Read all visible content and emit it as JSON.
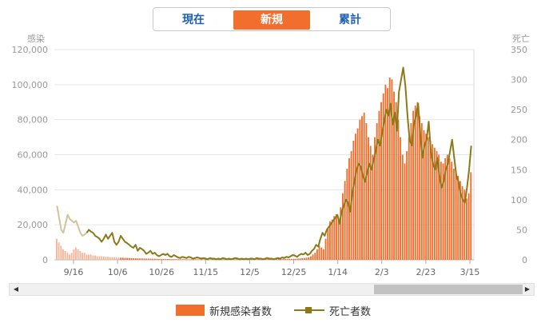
{
  "tabs": [
    {
      "label": "現在",
      "active": false
    },
    {
      "label": "新規",
      "active": true
    },
    {
      "label": "累計",
      "active": false
    }
  ],
  "colors": {
    "cases": "#f26e2c",
    "cases_faded": "#f7b69a",
    "deaths": "#8b7a17",
    "deaths_faded": "#cfc49a",
    "active_tab": "#f26e2c",
    "tab_text": "#1e5fb4"
  },
  "chart_data": {
    "type": "bar",
    "left_axis": {
      "title": "感染",
      "ticks": [
        "0",
        "20,000",
        "40,000",
        "60,000",
        "80,000",
        "100,000",
        "120,000"
      ],
      "ylim": [
        0,
        120000
      ]
    },
    "right_axis": {
      "title": "死亡",
      "ticks": [
        "0",
        "50",
        "100",
        "150",
        "200",
        "250",
        "300",
        "350"
      ],
      "ylim": [
        0,
        350
      ]
    },
    "x_ticks": [
      "9/16",
      "10/6",
      "10/26",
      "11/15",
      "12/5",
      "12/25",
      "1/14",
      "2/3",
      "2/23",
      "3/15"
    ],
    "grid": true,
    "legend_position": "bottom",
    "series": [
      {
        "name": "新規感染者数",
        "type": "bar",
        "axis": "left",
        "values": [
          12000,
          10000,
          8000,
          6000,
          5000,
          4000,
          3000,
          4000,
          6000,
          7000,
          6000,
          5000,
          4000,
          4000,
          3000,
          3000,
          3000,
          2500,
          2500,
          2000,
          2000,
          2000,
          2000,
          1800,
          1800,
          1500,
          1500,
          1500,
          1400,
          1300,
          1200,
          1200,
          1100,
          1100,
          1000,
          1000,
          900,
          900,
          850,
          800,
          800,
          800,
          700,
          700,
          700,
          600,
          600,
          600,
          500,
          500,
          500,
          450,
          450,
          450,
          400,
          400,
          400,
          400,
          350,
          350,
          350,
          300,
          300,
          300,
          300,
          300,
          300,
          250,
          250,
          250,
          250,
          250,
          250,
          250,
          250,
          250,
          250,
          250,
          300,
          300,
          300,
          300,
          300,
          300,
          300,
          300,
          300,
          300,
          350,
          350,
          350,
          350,
          350,
          350,
          400,
          400,
          400,
          400,
          400,
          400,
          450,
          450,
          450,
          450,
          450,
          450,
          500,
          500,
          500,
          500,
          500,
          600,
          600,
          700,
          800,
          900,
          1000,
          1200,
          1500,
          2000,
          3000,
          4000,
          6000,
          8000,
          7000,
          6000,
          12000,
          18000,
          22000,
          23000,
          25000,
          26000,
          24000,
          30000,
          38000,
          45000,
          52000,
          58000,
          62000,
          68000,
          72000,
          75000,
          80000,
          82000,
          84000,
          78000,
          70000,
          65000,
          60000,
          70000,
          78000,
          85000,
          90000,
          95000,
          100000,
          98000,
          104000,
          103000,
          96000,
          90000,
          80000,
          70000,
          60000,
          55000,
          62000,
          70000,
          78000,
          85000,
          88000,
          90000,
          82000,
          78000,
          74000,
          72000,
          70000,
          68000,
          66000,
          64000,
          62000,
          60000,
          56000,
          55000,
          58000,
          60000,
          58000,
          56000,
          52000,
          50000,
          48000,
          45000,
          42000,
          40000,
          35000,
          38000,
          50000
        ]
      },
      {
        "name": "死亡者数",
        "type": "line",
        "axis": "right",
        "values": [
          90,
          70,
          50,
          45,
          60,
          75,
          68,
          65,
          62,
          65,
          55,
          45,
          40,
          42,
          45,
          50,
          47,
          45,
          40,
          38,
          35,
          30,
          35,
          42,
          35,
          40,
          45,
          30,
          25,
          30,
          40,
          35,
          30,
          28,
          25,
          22,
          20,
          25,
          15,
          20,
          18,
          15,
          10,
          12,
          15,
          10,
          12,
          8,
          6,
          8,
          10,
          8,
          10,
          6,
          5,
          8,
          6,
          4,
          3,
          5,
          4,
          3,
          5,
          4,
          2,
          3,
          4,
          3,
          2,
          3,
          2,
          1,
          3,
          2,
          2,
          1,
          2,
          1,
          3,
          2,
          1,
          2,
          1,
          2,
          3,
          2,
          1,
          2,
          1,
          2,
          1,
          2,
          2,
          1,
          3,
          2,
          2,
          1,
          2,
          3,
          2,
          2,
          1,
          2,
          3,
          2,
          4,
          3,
          5,
          4,
          6,
          8,
          7,
          5,
          8,
          10,
          9,
          12,
          8,
          10,
          15,
          18,
          25,
          22,
          35,
          45,
          40,
          50,
          55,
          60,
          65,
          70,
          75,
          60,
          80,
          90,
          100,
          95,
          80,
          110,
          130,
          150,
          160,
          155,
          140,
          130,
          145,
          160,
          150,
          165,
          180,
          200,
          190,
          210,
          230,
          250,
          240,
          260,
          225,
          245,
          215,
          280,
          300,
          320,
          290,
          240,
          200,
          190,
          225,
          240,
          260,
          210,
          170,
          190,
          200,
          230,
          180,
          160,
          150,
          170,
          140,
          120,
          130,
          150,
          160,
          180,
          200,
          170,
          140,
          130,
          110,
          100,
          95,
          120,
          150,
          190
        ]
      }
    ]
  }
}
